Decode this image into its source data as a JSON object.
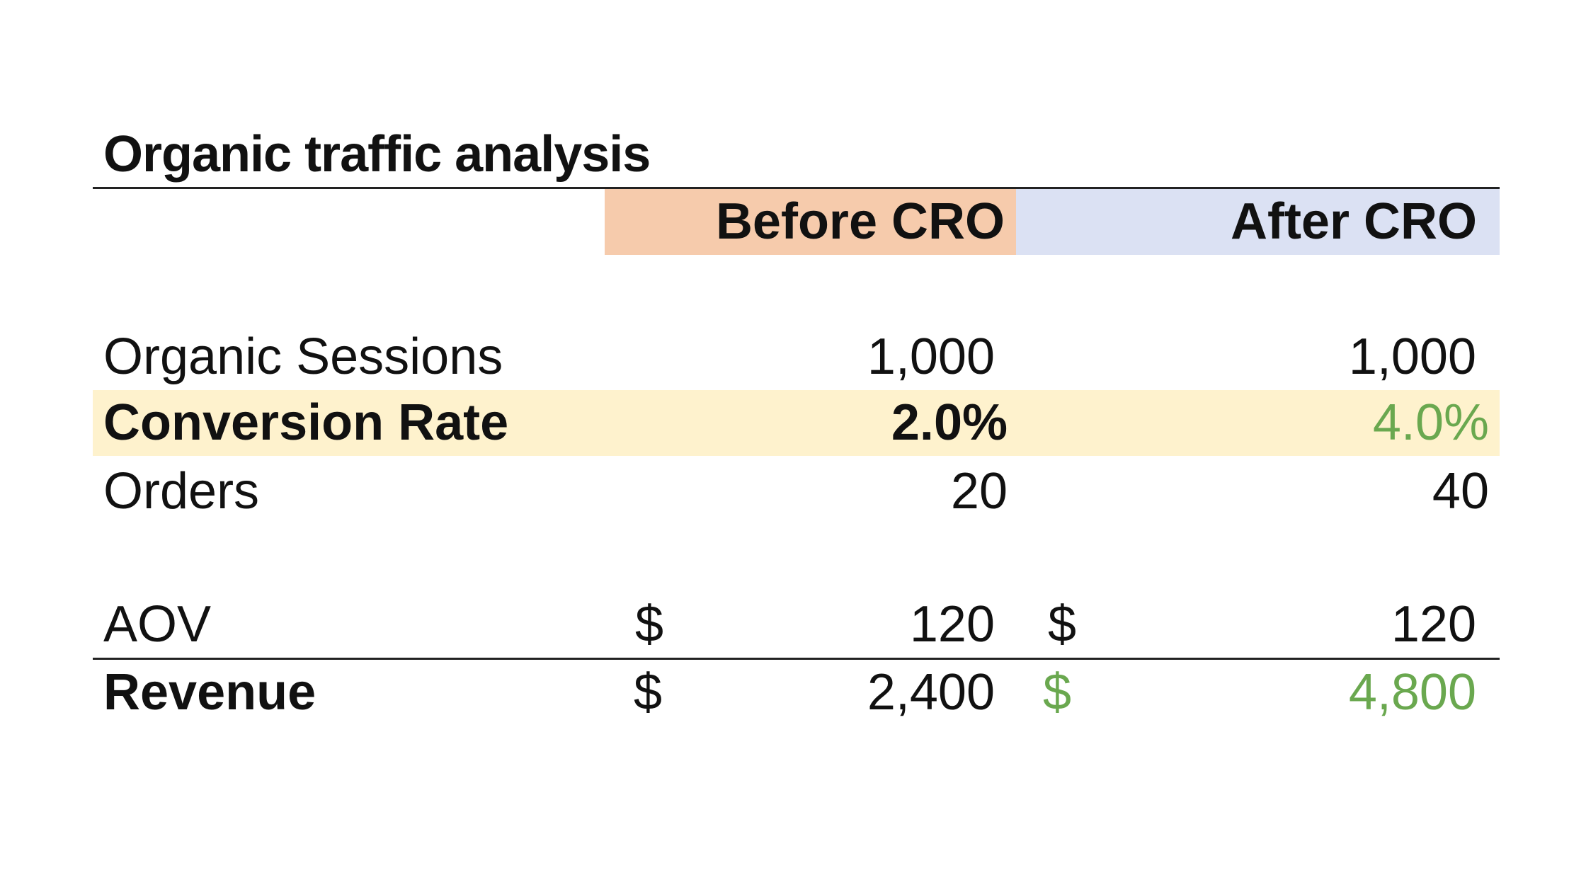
{
  "title": "Organic traffic analysis",
  "columns": {
    "before": "Before CRO",
    "after": "After CRO"
  },
  "rows": {
    "sessions": {
      "label": "Organic Sessions",
      "before": "1,000",
      "after": "1,000"
    },
    "conversion": {
      "label": "Conversion Rate",
      "before": "2.0%",
      "after": "4.0%"
    },
    "orders": {
      "label": "Orders",
      "before": "20",
      "after": "40"
    },
    "aov": {
      "label": "AOV",
      "currency_before": "$",
      "before": "120",
      "currency_after": "$",
      "after": "120"
    },
    "revenue": {
      "label": "Revenue",
      "currency_before": "$",
      "before": "2,400",
      "currency_after": "$",
      "after": "4,800"
    }
  },
  "colors": {
    "before_header_fill": "#f6cbac",
    "after_header_fill": "#dbe1f3",
    "highlight_row_fill": "#fef2cd",
    "improvement_text": "#6aa84f"
  }
}
